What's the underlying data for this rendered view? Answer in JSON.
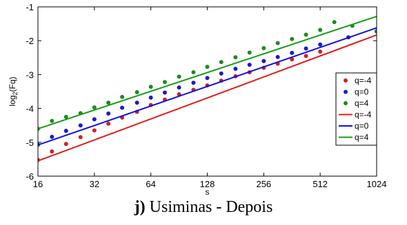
{
  "caption": {
    "letter": "j)",
    "text": " Usiminas - Depois"
  },
  "chart_data": {
    "type": "scatter",
    "xlabel": "s",
    "ylabel": "log2(Fq)",
    "ylabel_main": "log",
    "ylabel_sub": "2",
    "ylabel_rest": "(Fq)",
    "xscale": "log2",
    "xlim": [
      16,
      1024
    ],
    "ylim": [
      -6,
      -1
    ],
    "xticks": [
      16,
      32,
      64,
      128,
      256,
      512,
      1024
    ],
    "xtick_labels": [
      "16",
      "32",
      "64",
      "128",
      "256",
      "512",
      "1024"
    ],
    "yticks": [
      -6,
      -5,
      -4,
      -3,
      -2,
      -1
    ],
    "ytick_labels": [
      "-6",
      "-5",
      "-4",
      "-3",
      "-2",
      "-1"
    ],
    "grid": false,
    "legend_position": "right",
    "series": [
      {
        "name": "q=-4",
        "kind": "points",
        "color": "#cc2222",
        "points": [
          [
            16,
            -5.52
          ],
          [
            19,
            -5.27
          ],
          [
            22.6,
            -5.05
          ],
          [
            27,
            -4.85
          ],
          [
            32,
            -4.65
          ],
          [
            38,
            -4.45
          ],
          [
            45,
            -4.27
          ],
          [
            54,
            -4.1
          ],
          [
            64,
            -3.9
          ],
          [
            76,
            -3.74
          ],
          [
            90.5,
            -3.58
          ],
          [
            108,
            -3.45
          ],
          [
            128,
            -3.32
          ],
          [
            152,
            -3.18
          ],
          [
            181,
            -3.05
          ],
          [
            215,
            -2.93
          ],
          [
            256,
            -2.8
          ],
          [
            304,
            -2.68
          ],
          [
            362,
            -2.55
          ],
          [
            430,
            -2.45
          ],
          [
            512,
            -2.32
          ]
        ]
      },
      {
        "name": "q=0",
        "kind": "points",
        "color": "#1a1acc",
        "points": [
          [
            16,
            -5.07
          ],
          [
            19,
            -4.84
          ],
          [
            22.6,
            -4.66
          ],
          [
            27,
            -4.5
          ],
          [
            32,
            -4.32
          ],
          [
            38,
            -4.15
          ],
          [
            45,
            -3.98
          ],
          [
            54,
            -3.83
          ],
          [
            64,
            -3.68
          ],
          [
            76,
            -3.53
          ],
          [
            90.5,
            -3.38
          ],
          [
            108,
            -3.24
          ],
          [
            128,
            -3.1
          ],
          [
            152,
            -2.97
          ],
          [
            181,
            -2.83
          ],
          [
            215,
            -2.71
          ],
          [
            256,
            -2.6
          ],
          [
            304,
            -2.48
          ],
          [
            362,
            -2.36
          ],
          [
            430,
            -2.23
          ],
          [
            512,
            -2.11
          ],
          [
            724,
            -1.9
          ],
          [
            1024,
            -1.72
          ]
        ]
      },
      {
        "name": "q=4",
        "kind": "points",
        "color": "#1e8a1e",
        "points": [
          [
            16,
            -4.6
          ],
          [
            19,
            -4.37
          ],
          [
            22.6,
            -4.25
          ],
          [
            27,
            -4.14
          ],
          [
            32,
            -3.97
          ],
          [
            38,
            -3.83
          ],
          [
            45,
            -3.66
          ],
          [
            54,
            -3.52
          ],
          [
            64,
            -3.36
          ],
          [
            76,
            -3.22
          ],
          [
            90.5,
            -3.06
          ],
          [
            108,
            -2.93
          ],
          [
            128,
            -2.77
          ],
          [
            152,
            -2.63
          ],
          [
            181,
            -2.49
          ],
          [
            215,
            -2.35
          ],
          [
            256,
            -2.22
          ],
          [
            304,
            -2.07
          ],
          [
            362,
            -1.95
          ],
          [
            430,
            -1.82
          ],
          [
            512,
            -1.68
          ],
          [
            609,
            -1.45
          ],
          [
            760,
            -1.56
          ],
          [
            1024,
            -1.73
          ]
        ]
      },
      {
        "name": "q=-4",
        "kind": "line",
        "color": "#e21b1b",
        "points": [
          [
            16,
            -5.55
          ],
          [
            1024,
            -1.83
          ]
        ]
      },
      {
        "name": "q=0",
        "kind": "line",
        "color": "#1010e0",
        "points": [
          [
            16,
            -5.08
          ],
          [
            1024,
            -1.62
          ]
        ]
      },
      {
        "name": "q=4",
        "kind": "line",
        "color": "#169c16",
        "points": [
          [
            16,
            -4.6
          ],
          [
            1024,
            -1.28
          ]
        ]
      }
    ]
  }
}
